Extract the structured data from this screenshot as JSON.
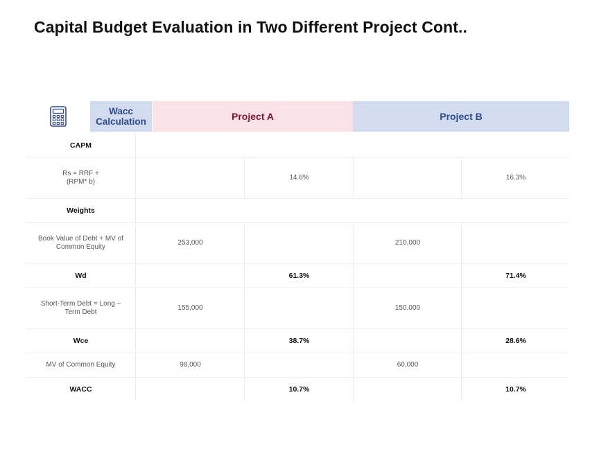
{
  "page": {
    "title": "Capital Budget Evaluation in Two Different Project Cont.."
  },
  "header": {
    "icon": "calculator-icon",
    "wacc_label": "Wacc Calculation",
    "project_a": "Project A",
    "project_b": "Project B",
    "colors": {
      "wacc_bg": "#d2dcf1",
      "project_a_bg": "#fbe2e7",
      "project_a_text": "#7f1730",
      "project_b_bg": "#d2dcf1",
      "project_b_text": "#2f4a8c"
    }
  },
  "rows": [
    {
      "label": "CAPM",
      "section": true,
      "a1": "",
      "a2": "",
      "b1": "",
      "b2": ""
    },
    {
      "label": "Rs =  RRF + (RPM* b)",
      "section": false,
      "a1": "",
      "a2": "14.6%",
      "b1": "",
      "b2": "16.3%"
    },
    {
      "label": "Weights",
      "section": true,
      "a1": "",
      "a2": "",
      "b1": "",
      "b2": ""
    },
    {
      "label": "Book Value of Debt + MV of Common Equity",
      "section": false,
      "a1": "253,000",
      "a2": "",
      "b1": "210,000",
      "b2": ""
    },
    {
      "label": "Wd",
      "section": false,
      "bold": true,
      "a1": "",
      "a2": "61.3%",
      "b1": "",
      "b2": "71.4%"
    },
    {
      "label": "Short-Term Debt = Long – Term Debt",
      "section": false,
      "a1": "155,000",
      "a2": "",
      "b1": "150,000",
      "b2": ""
    },
    {
      "label": "Wce",
      "section": false,
      "bold": true,
      "a1": "",
      "a2": "38.7%",
      "b1": "",
      "b2": "28.6%"
    },
    {
      "label": "MV of Common Equity",
      "section": false,
      "a1": "98,000",
      "a2": "",
      "b1": "60,000",
      "b2": ""
    },
    {
      "label": "WACC",
      "section": false,
      "bold": true,
      "a1": "",
      "a2": "10.7%",
      "b1": "",
      "b2": "10.7%"
    }
  ]
}
